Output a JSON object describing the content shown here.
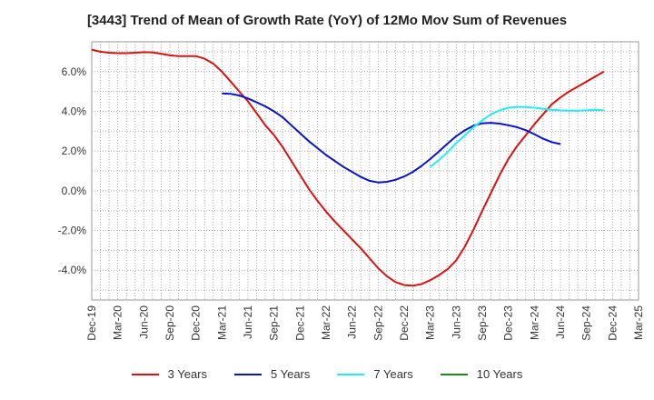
{
  "chart_data": {
    "type": "line",
    "title": "[3443]  Trend of Mean of Growth Rate (YoY) of 12Mo Mov Sum of Revenues",
    "xlabel": "",
    "ylabel": "",
    "ylim": [
      -5.5,
      7.5
    ],
    "yticks": [
      {
        "v": 6,
        "label": "6.0%"
      },
      {
        "v": 4,
        "label": "4.0%"
      },
      {
        "v": 2,
        "label": "2.0%"
      },
      {
        "v": 0,
        "label": "0.0%"
      },
      {
        "v": -2,
        "label": "-2.0%"
      },
      {
        "v": -4,
        "label": "-4.0%"
      }
    ],
    "xticks": [
      {
        "i": 0,
        "label": "Dec-19"
      },
      {
        "i": 3,
        "label": "Mar-20"
      },
      {
        "i": 6,
        "label": "Jun-20"
      },
      {
        "i": 9,
        "label": "Sep-20"
      },
      {
        "i": 12,
        "label": "Dec-20"
      },
      {
        "i": 15,
        "label": "Mar-21"
      },
      {
        "i": 18,
        "label": "Jun-21"
      },
      {
        "i": 21,
        "label": "Sep-21"
      },
      {
        "i": 24,
        "label": "Dec-21"
      },
      {
        "i": 27,
        "label": "Mar-22"
      },
      {
        "i": 30,
        "label": "Jun-22"
      },
      {
        "i": 33,
        "label": "Sep-22"
      },
      {
        "i": 36,
        "label": "Dec-22"
      },
      {
        "i": 39,
        "label": "Mar-23"
      },
      {
        "i": 42,
        "label": "Jun-23"
      },
      {
        "i": 45,
        "label": "Sep-23"
      },
      {
        "i": 48,
        "label": "Dec-23"
      },
      {
        "i": 51,
        "label": "Mar-24"
      },
      {
        "i": 54,
        "label": "Jun-24"
      },
      {
        "i": 57,
        "label": "Sep-24"
      },
      {
        "i": 60,
        "label": "Dec-24"
      },
      {
        "i": 63,
        "label": "Mar-25"
      }
    ],
    "x_range": [
      0,
      63
    ],
    "grid": true,
    "series": [
      {
        "name": "3 Years",
        "color": "#dd1111",
        "start": 0,
        "values": [
          7.1,
          7.0,
          6.95,
          6.93,
          6.93,
          6.95,
          6.98,
          6.97,
          6.9,
          6.82,
          6.78,
          6.78,
          6.78,
          6.65,
          6.4,
          6.0,
          5.5,
          5.0,
          4.5,
          3.9,
          3.3,
          2.8,
          2.2,
          1.5,
          0.8,
          0.1,
          -0.5,
          -1.05,
          -1.55,
          -2.0,
          -2.45,
          -2.9,
          -3.4,
          -3.9,
          -4.3,
          -4.6,
          -4.75,
          -4.78,
          -4.7,
          -4.5,
          -4.25,
          -3.95,
          -3.5,
          -2.8,
          -1.95,
          -1.0,
          -0.1,
          0.8,
          1.6,
          2.25,
          2.8,
          3.35,
          3.85,
          4.35,
          4.7,
          5.0,
          5.25,
          5.5,
          5.75,
          6.0
        ]
      },
      {
        "name": "5 Years",
        "color": "#0a14c8",
        "start": 15,
        "values": [
          4.9,
          4.88,
          4.8,
          4.65,
          4.45,
          4.25,
          4.0,
          3.7,
          3.3,
          2.9,
          2.5,
          2.15,
          1.8,
          1.5,
          1.2,
          0.95,
          0.7,
          0.5,
          0.42,
          0.45,
          0.55,
          0.72,
          0.95,
          1.25,
          1.6,
          1.98,
          2.38,
          2.75,
          3.05,
          3.28,
          3.4,
          3.42,
          3.38,
          3.3,
          3.2,
          3.05,
          2.85,
          2.62,
          2.45,
          2.35
        ]
      },
      {
        "name": "7 Years",
        "color": "#22eeee",
        "start": 39,
        "values": [
          1.2,
          1.55,
          1.95,
          2.4,
          2.8,
          3.2,
          3.55,
          3.85,
          4.05,
          4.18,
          4.22,
          4.22,
          4.18,
          4.12,
          4.08,
          4.05,
          4.03,
          4.03,
          4.05,
          4.08,
          4.05
        ]
      },
      {
        "name": "10 Years",
        "color": "#1a8a1a",
        "start": 60,
        "values": []
      }
    ]
  }
}
